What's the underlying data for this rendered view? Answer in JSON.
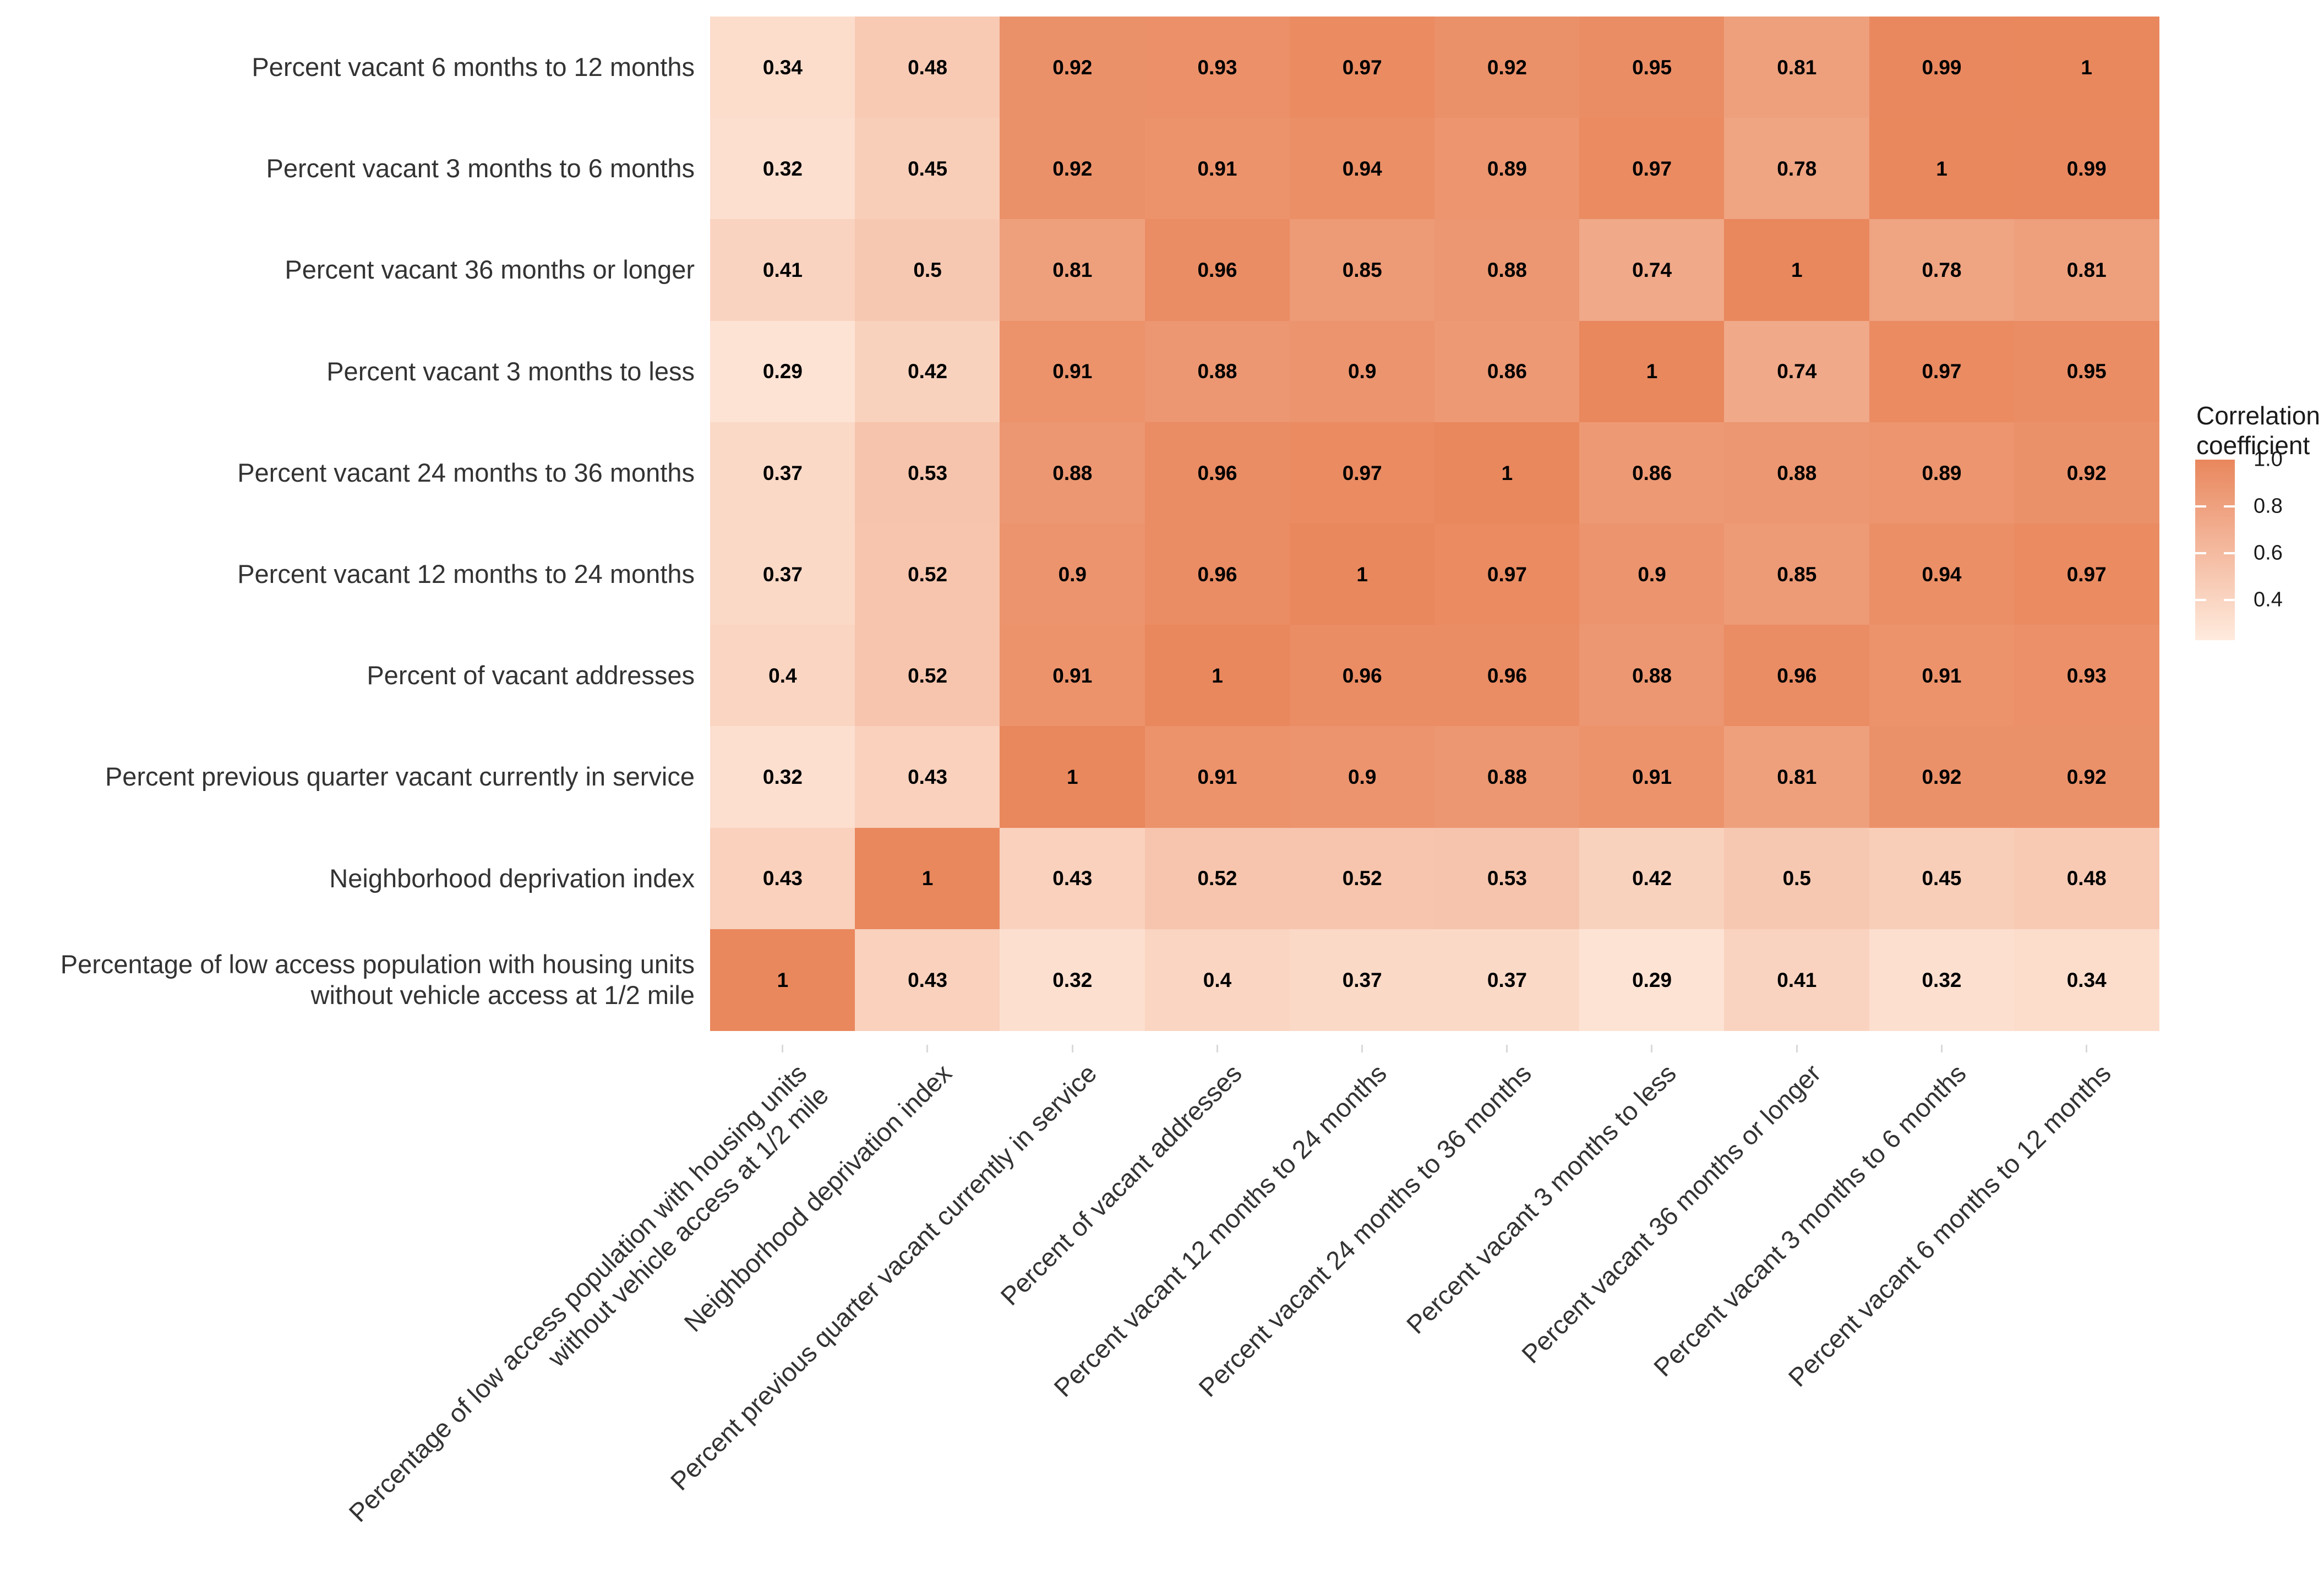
{
  "chart_data": {
    "type": "heatmap",
    "title": "",
    "grid": false,
    "value_domain": [
      0.29,
      1.0
    ],
    "color_low": "#FDE3D4",
    "color_high": "#E9875D",
    "axis_text_color": "#333333",
    "rows": [
      [
        "Percent vacant 6 months to 12 months"
      ],
      [
        "Percent vacant 3 months to 6 months"
      ],
      [
        "Percent vacant 36 months or longer"
      ],
      [
        "Percent vacant 3 months to less"
      ],
      [
        "Percent vacant 24 months to 36 months"
      ],
      [
        "Percent vacant 12 months to 24 months"
      ],
      [
        "Percent of vacant addresses"
      ],
      [
        "Percent previous quarter vacant currently in service"
      ],
      [
        "Neighborhood deprivation index"
      ],
      [
        "Percentage of low access population with housing units",
        "without vehicle access at 1/2 mile"
      ]
    ],
    "columns": [
      [
        "Percentage of low access population with housing units",
        "without vehicle access at 1/2 mile"
      ],
      [
        "Neighborhood deprivation index"
      ],
      [
        "Percent previous quarter vacant currently in service"
      ],
      [
        "Percent of vacant addresses"
      ],
      [
        "Percent vacant 12 months to 24 months"
      ],
      [
        "Percent vacant 24 months to 36 months"
      ],
      [
        "Percent vacant 3 months to less"
      ],
      [
        "Percent vacant 36 months or longer"
      ],
      [
        "Percent vacant 3 months to 6 months"
      ],
      [
        "Percent vacant 6 months to 12 months"
      ]
    ],
    "values": [
      [
        "0.34",
        "0.48",
        "0.92",
        "0.93",
        "0.97",
        "0.92",
        "0.95",
        "0.81",
        "0.99",
        "1"
      ],
      [
        "0.32",
        "0.45",
        "0.92",
        "0.91",
        "0.94",
        "0.89",
        "0.97",
        "0.78",
        "1",
        "0.99"
      ],
      [
        "0.41",
        "0.5",
        "0.81",
        "0.96",
        "0.85",
        "0.88",
        "0.74",
        "1",
        "0.78",
        "0.81"
      ],
      [
        "0.29",
        "0.42",
        "0.91",
        "0.88",
        "0.9",
        "0.86",
        "1",
        "0.74",
        "0.97",
        "0.95"
      ],
      [
        "0.37",
        "0.53",
        "0.88",
        "0.96",
        "0.97",
        "1",
        "0.86",
        "0.88",
        "0.89",
        "0.92"
      ],
      [
        "0.37",
        "0.52",
        "0.9",
        "0.96",
        "1",
        "0.97",
        "0.9",
        "0.85",
        "0.94",
        "0.97"
      ],
      [
        "0.4",
        "0.52",
        "0.91",
        "1",
        "0.96",
        "0.96",
        "0.88",
        "0.96",
        "0.91",
        "0.93"
      ],
      [
        "0.32",
        "0.43",
        "1",
        "0.91",
        "0.9",
        "0.88",
        "0.91",
        "0.81",
        "0.92",
        "0.92"
      ],
      [
        "0.43",
        "1",
        "0.43",
        "0.52",
        "0.52",
        "0.53",
        "0.42",
        "0.5",
        "0.45",
        "0.48"
      ],
      [
        "1",
        "0.43",
        "0.32",
        "0.4",
        "0.37",
        "0.37",
        "0.29",
        "0.41",
        "0.32",
        "0.34"
      ]
    ],
    "legend": {
      "position": "right",
      "title_line1": "Correlation",
      "title_line2": "coefficient",
      "ticks": [
        {
          "label": "1.0",
          "value": 1.0
        },
        {
          "label": "0.8",
          "value": 0.8
        },
        {
          "label": "0.6",
          "value": 0.6
        },
        {
          "label": "0.4",
          "value": 0.4
        }
      ]
    }
  }
}
